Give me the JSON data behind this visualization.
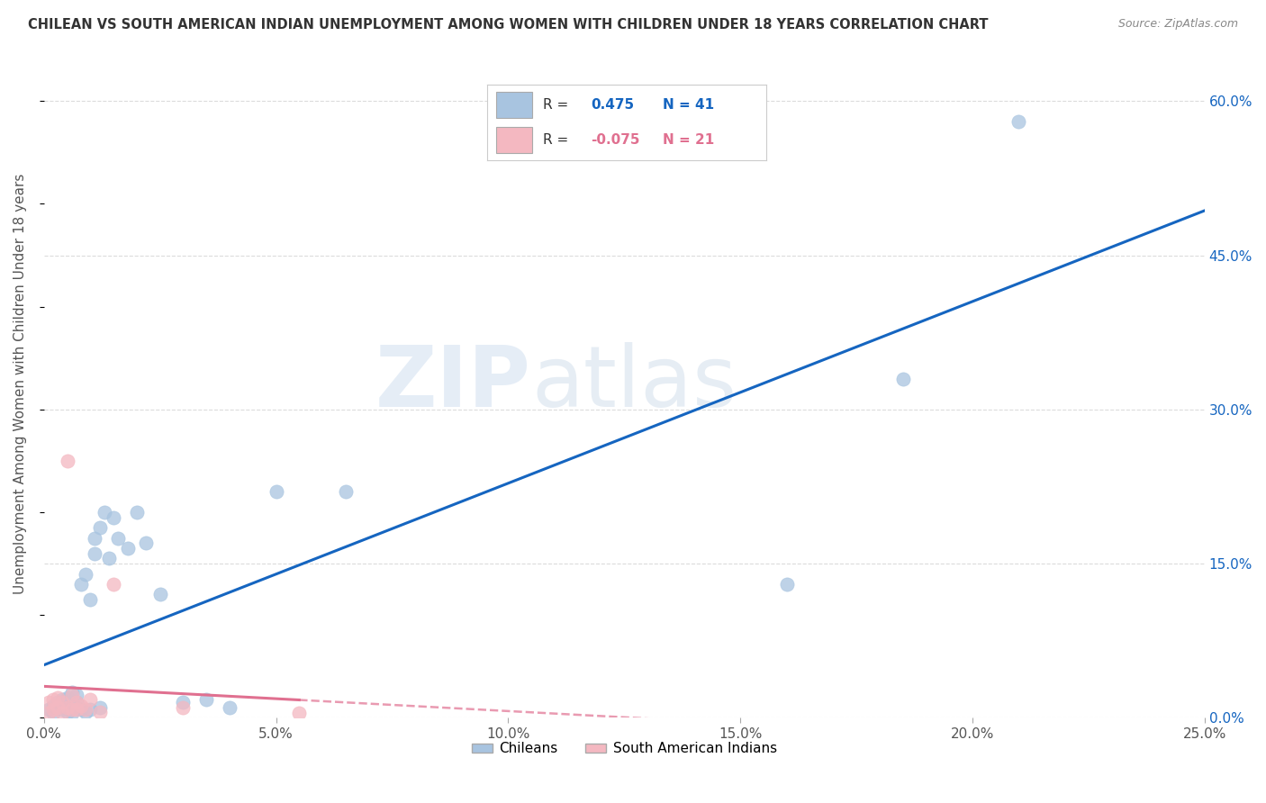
{
  "title": "CHILEAN VS SOUTH AMERICAN INDIAN UNEMPLOYMENT AMONG WOMEN WITH CHILDREN UNDER 18 YEARS CORRELATION CHART",
  "source": "Source: ZipAtlas.com",
  "ylabel": "Unemployment Among Women with Children Under 18 years",
  "xlim": [
    0.0,
    0.25
  ],
  "ylim": [
    -0.02,
    0.65
  ],
  "plot_ylim": [
    0.0,
    0.65
  ],
  "xtick_labels": [
    "0.0%",
    "5.0%",
    "10.0%",
    "15.0%",
    "20.0%",
    "25.0%"
  ],
  "xtick_vals": [
    0.0,
    0.05,
    0.1,
    0.15,
    0.2,
    0.25
  ],
  "ytick_labels": [
    "60.0%",
    "45.0%",
    "30.0%",
    "15.0%",
    "0.0%"
  ],
  "ytick_vals": [
    0.6,
    0.45,
    0.3,
    0.15,
    0.0
  ],
  "r_chilean": 0.475,
  "n_chilean": 41,
  "r_sa_indian": -0.075,
  "n_sa_indian": 21,
  "legend_labels": [
    "Chileans",
    "South American Indians"
  ],
  "color_chilean": "#a8c4e0",
  "color_sa_indian": "#f4b8c1",
  "line_color_chilean": "#1565c0",
  "line_color_sa_indian": "#e07090",
  "watermark_zip": "ZIP",
  "watermark_atlas": "atlas",
  "background_color": "#ffffff",
  "chilean_x": [
    0.001,
    0.002,
    0.002,
    0.003,
    0.003,
    0.004,
    0.004,
    0.005,
    0.005,
    0.006,
    0.006,
    0.006,
    0.007,
    0.007,
    0.007,
    0.008,
    0.008,
    0.009,
    0.009,
    0.01,
    0.01,
    0.011,
    0.011,
    0.012,
    0.012,
    0.013,
    0.014,
    0.015,
    0.016,
    0.018,
    0.02,
    0.022,
    0.025,
    0.03,
    0.035,
    0.04,
    0.05,
    0.065,
    0.16,
    0.185,
    0.21
  ],
  "chilean_y": [
    0.008,
    0.005,
    0.012,
    0.01,
    0.015,
    0.008,
    0.018,
    0.006,
    0.02,
    0.01,
    0.025,
    0.005,
    0.015,
    0.01,
    0.022,
    0.008,
    0.13,
    0.14,
    0.006,
    0.115,
    0.008,
    0.16,
    0.175,
    0.01,
    0.185,
    0.2,
    0.155,
    0.195,
    0.175,
    0.165,
    0.2,
    0.17,
    0.12,
    0.015,
    0.018,
    0.01,
    0.22,
    0.22,
    0.13,
    0.33,
    0.58
  ],
  "sa_indian_x": [
    0.001,
    0.001,
    0.002,
    0.002,
    0.003,
    0.003,
    0.004,
    0.004,
    0.005,
    0.005,
    0.006,
    0.006,
    0.007,
    0.007,
    0.008,
    0.009,
    0.01,
    0.012,
    0.015,
    0.03,
    0.055
  ],
  "sa_indian_y": [
    0.005,
    0.015,
    0.008,
    0.018,
    0.01,
    0.02,
    0.005,
    0.015,
    0.25,
    0.01,
    0.008,
    0.022,
    0.015,
    0.008,
    0.012,
    0.008,
    0.018,
    0.006,
    0.13,
    0.01,
    0.005
  ],
  "grid_color": "#cccccc",
  "grid_alpha": 0.7,
  "dot_size": 120
}
